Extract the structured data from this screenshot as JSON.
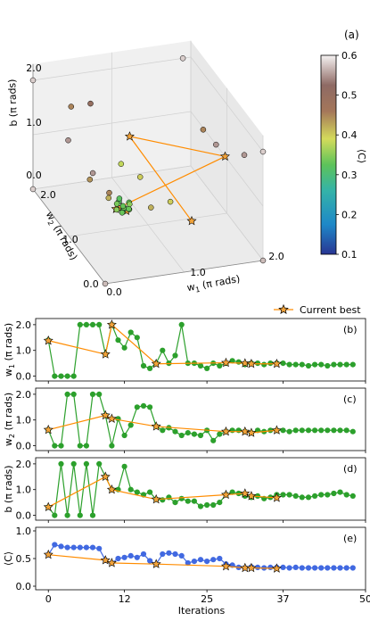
{
  "colors": {
    "orange": "#ff8c00",
    "green": "#2ca02c",
    "blue": "#4169e1",
    "star_fill": "#f2a33a",
    "axis": "#000000",
    "grid": "#d0d0d0",
    "pane": "#f2f2f2"
  },
  "chart_data": [
    {
      "panel": "(a)",
      "type": "scatter",
      "projection": "3d",
      "x_label": "w$_1$ (π rads)",
      "y_label": "w$_2$ (π rads)",
      "z_label": "b (π rads)",
      "x_ticks": [
        "0.0",
        "1.0",
        "2.0"
      ],
      "y_ticks": [
        "0.0",
        "1.0",
        "2.0"
      ],
      "z_ticks": [
        "0.0",
        "1.0",
        "2.0"
      ],
      "colorbar": {
        "label": "⟨C⟩",
        "range": [
          0.1,
          0.6
        ],
        "ticks": [
          "0.1",
          "0.2",
          "0.3",
          "0.4",
          "0.5",
          "0.6"
        ]
      },
      "samples": [
        {
          "w1": 1.9,
          "w2": 2.0,
          "b": 2.0,
          "C": 0.58
        },
        {
          "w1": 0.0,
          "w2": 2.0,
          "b": 2.0,
          "C": 0.58
        },
        {
          "w1": 1.7,
          "w2": 1.0,
          "b": 1.6,
          "C": 0.45
        },
        {
          "w1": 2.0,
          "w2": 0.0,
          "b": 2.0,
          "C": 0.58
        },
        {
          "w1": 1.9,
          "w2": 0.3,
          "b": 1.7,
          "C": 0.55
        },
        {
          "w1": 2.0,
          "w2": 1.3,
          "b": 1.0,
          "C": 0.55
        },
        {
          "w1": 0.0,
          "w2": 0.0,
          "b": 0.0,
          "C": 0.57
        },
        {
          "w1": 2.0,
          "w2": 0.0,
          "b": 0.0,
          "C": 0.57
        },
        {
          "w1": 0.0,
          "w2": 2.0,
          "b": 0.0,
          "C": 0.58
        },
        {
          "w1": 0.3,
          "w2": 1.6,
          "b": 1.8,
          "C": 0.45
        },
        {
          "w1": 0.5,
          "w2": 1.5,
          "b": 1.9,
          "C": 0.5
        },
        {
          "w1": 0.4,
          "w2": 1.9,
          "b": 0.9,
          "C": 0.55
        },
        {
          "w1": 0.75,
          "w2": 1.2,
          "b": 1.0,
          "C": 0.38
        },
        {
          "w1": 0.9,
          "w2": 1.0,
          "b": 0.9,
          "C": 0.4
        },
        {
          "w1": 0.6,
          "w2": 1.2,
          "b": 0.5,
          "C": 0.45
        },
        {
          "w1": 0.9,
          "w2": 0.7,
          "b": 0.6,
          "C": 0.42
        },
        {
          "w1": 0.5,
          "w2": 1.0,
          "b": 0.6,
          "C": 0.42
        },
        {
          "w1": 1.1,
          "w2": 0.6,
          "b": 0.75,
          "C": 0.4
        },
        {
          "w1": 0.4,
          "w2": 1.3,
          "b": 0.7,
          "C": 0.44
        },
        {
          "w1": 0.3,
          "w2": 1.0,
          "b": 1.1,
          "C": 0.55
        },
        {
          "w1": 0.5,
          "w2": 0.6,
          "b": 0.7,
          "C": 0.35
        },
        {
          "w1": 0.55,
          "w2": 0.7,
          "b": 0.65,
          "C": 0.3
        },
        {
          "w1": 0.5,
          "w2": 0.55,
          "b": 0.8,
          "C": 0.3
        },
        {
          "w1": 0.45,
          "w2": 0.6,
          "b": 0.9,
          "C": 0.32
        },
        {
          "w1": 0.52,
          "w2": 0.62,
          "b": 0.75,
          "C": 0.34
        },
        {
          "w1": 0.6,
          "w2": 0.65,
          "b": 0.8,
          "C": 0.33
        },
        {
          "w1": 0.42,
          "w2": 0.6,
          "b": 0.75,
          "C": 0.35
        },
        {
          "w1": 0.5,
          "w2": 0.7,
          "b": 0.85,
          "C": 0.32
        },
        {
          "w1": 0.48,
          "w2": 0.58,
          "b": 0.7,
          "C": 0.33
        },
        {
          "w1": 0.58,
          "w2": 0.6,
          "b": 0.72,
          "C": 0.34
        },
        {
          "w1": 0.45,
          "w2": 0.66,
          "b": 0.8,
          "C": 0.34
        },
        {
          "w1": 0.55,
          "w2": 0.55,
          "b": 0.78,
          "C": 0.33
        },
        {
          "w1": 0.62,
          "w2": 0.68,
          "b": 0.74,
          "C": 0.35
        },
        {
          "w1": 0.5,
          "w2": 0.6,
          "b": 0.8,
          "C": 0.33
        }
      ],
      "best_path": [
        {
          "w1": 1.38,
          "w2": 0.62,
          "b": 0.32
        },
        {
          "w1": 0.85,
          "w2": 1.18,
          "b": 1.5
        },
        {
          "w1": 2.0,
          "w2": 1.05,
          "b": 1.0
        },
        {
          "w1": 0.48,
          "w2": 0.75,
          "b": 0.62
        },
        {
          "w1": 0.52,
          "w2": 0.55,
          "b": 0.75
        },
        {
          "w1": 0.48,
          "w2": 0.6,
          "b": 0.78
        }
      ]
    },
    {
      "panel": "(b)",
      "type": "line",
      "ylabel": "w$_1$ (π rads)",
      "ylim": [
        -0.05,
        2.1
      ],
      "yticks": [
        "0.0",
        "1.0",
        "2.0"
      ],
      "color": "green",
      "values": [
        1.4,
        0.0,
        0.0,
        0.0,
        0.0,
        2.0,
        2.0,
        2.0,
        2.0,
        0.85,
        2.0,
        1.4,
        1.1,
        1.7,
        1.5,
        0.4,
        0.3,
        0.5,
        1.0,
        0.5,
        0.8,
        2.0,
        0.5,
        0.5,
        0.4,
        0.3,
        0.5,
        0.4,
        0.5,
        0.6,
        0.55,
        0.45,
        0.5,
        0.5,
        0.45,
        0.5,
        0.5,
        0.5,
        0.45,
        0.45,
        0.45,
        0.4,
        0.45,
        0.45,
        0.4,
        0.45,
        0.45,
        0.45,
        0.45
      ],
      "best_iterations": [
        0,
        9,
        10,
        17,
        28,
        31,
        32,
        36
      ],
      "best_values": [
        1.38,
        0.85,
        2.0,
        0.48,
        0.52,
        0.5,
        0.48,
        0.48
      ]
    },
    {
      "panel": "(c)",
      "type": "line",
      "ylabel": "w$_2$ (π rads)",
      "ylim": [
        -0.05,
        2.1
      ],
      "yticks": [
        "0.0",
        "1.0",
        "2.0"
      ],
      "color": "green",
      "values": [
        0.62,
        0.0,
        0.0,
        2.0,
        2.0,
        0.0,
        0.0,
        2.0,
        2.0,
        1.18,
        0.0,
        1.05,
        0.4,
        0.8,
        1.5,
        1.55,
        1.5,
        0.75,
        0.6,
        0.7,
        0.55,
        0.4,
        0.5,
        0.45,
        0.4,
        0.6,
        0.2,
        0.45,
        0.55,
        0.6,
        0.6,
        0.55,
        0.5,
        0.6,
        0.55,
        0.6,
        0.6,
        0.6,
        0.55,
        0.6,
        0.6,
        0.6,
        0.6,
        0.6,
        0.6,
        0.6,
        0.6,
        0.6,
        0.55
      ],
      "best_iterations": [
        0,
        9,
        10,
        17,
        28,
        31,
        32,
        36
      ],
      "best_values": [
        0.62,
        1.18,
        1.05,
        0.75,
        0.55,
        0.55,
        0.5,
        0.6
      ]
    },
    {
      "panel": "(d)",
      "type": "line",
      "ylabel": "b (π rads)",
      "ylim": [
        -0.05,
        2.1
      ],
      "yticks": [
        "0.0",
        "1.0",
        "2.0"
      ],
      "color": "green",
      "values": [
        0.32,
        0.0,
        2.0,
        0.0,
        2.0,
        0.0,
        2.0,
        0.0,
        2.0,
        1.5,
        1.0,
        1.0,
        1.9,
        1.0,
        0.9,
        0.8,
        0.9,
        0.62,
        0.6,
        0.7,
        0.5,
        0.65,
        0.55,
        0.55,
        0.35,
        0.4,
        0.4,
        0.5,
        0.8,
        0.9,
        0.85,
        0.75,
        0.7,
        0.75,
        0.65,
        0.7,
        0.8,
        0.8,
        0.8,
        0.75,
        0.7,
        0.7,
        0.75,
        0.8,
        0.8,
        0.85,
        0.9,
        0.8,
        0.75
      ],
      "best_iterations": [
        0,
        9,
        10,
        17,
        28,
        31,
        32,
        36
      ],
      "best_values": [
        0.32,
        1.5,
        1.0,
        0.62,
        0.8,
        0.85,
        0.75,
        0.68
      ]
    },
    {
      "panel": "(e)",
      "type": "line",
      "ylabel": "⟨C⟩",
      "ylim": [
        0.0,
        1.0
      ],
      "yticks": [
        "0.0",
        "0.5",
        "1.0"
      ],
      "color": "blue",
      "values": [
        0.57,
        0.75,
        0.72,
        0.7,
        0.7,
        0.7,
        0.7,
        0.7,
        0.68,
        0.47,
        0.42,
        0.5,
        0.52,
        0.55,
        0.52,
        0.58,
        0.46,
        0.4,
        0.58,
        0.6,
        0.58,
        0.55,
        0.42,
        0.45,
        0.48,
        0.45,
        0.48,
        0.5,
        0.4,
        0.38,
        0.34,
        0.33,
        0.35,
        0.34,
        0.33,
        0.34,
        0.34,
        0.34,
        0.33,
        0.34,
        0.33,
        0.33,
        0.33,
        0.33,
        0.33,
        0.33,
        0.33,
        0.33,
        0.33
      ],
      "best_iterations": [
        0,
        9,
        10,
        17,
        28,
        31,
        32,
        36
      ],
      "best_values": [
        0.57,
        0.47,
        0.42,
        0.4,
        0.36,
        0.33,
        0.33,
        0.32
      ]
    }
  ],
  "legend": {
    "label": "Current best",
    "placement": "top-right"
  },
  "shared_x": {
    "label": "Iterations",
    "ticks": [
      "0",
      "12",
      "25",
      "37",
      "50"
    ],
    "tick_values": [
      0,
      12,
      25,
      37,
      50
    ],
    "xlim": [
      -2,
      50
    ]
  }
}
